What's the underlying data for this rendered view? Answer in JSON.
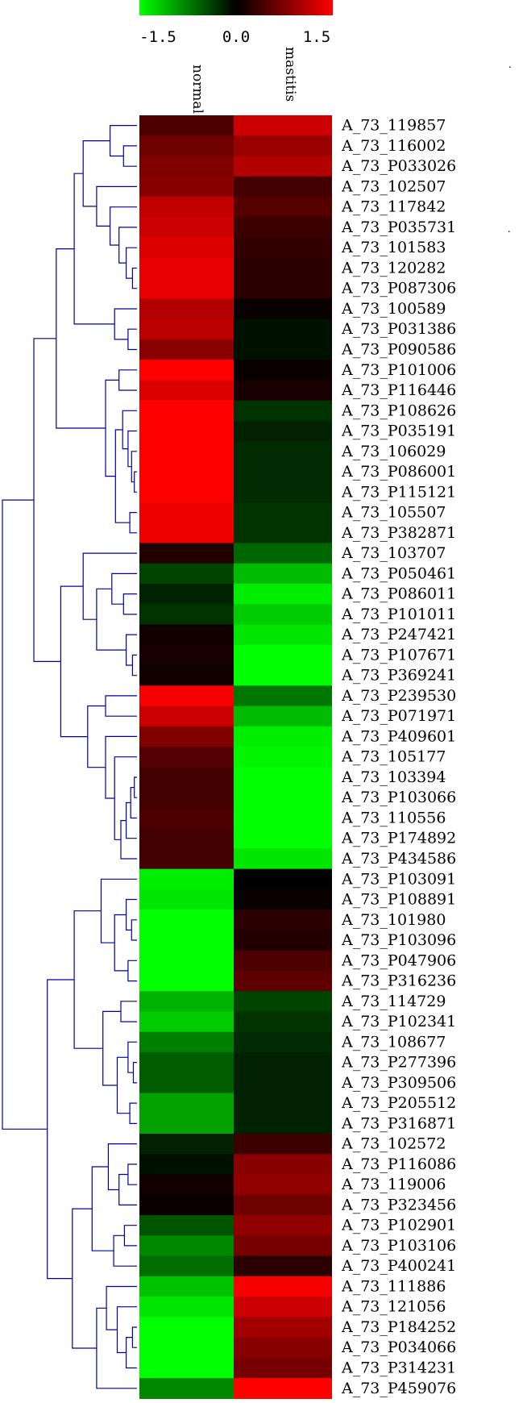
{
  "chart_data": {
    "type": "heatmap",
    "title": "",
    "color_scale": {
      "min": -1.5,
      "max": 1.5,
      "ticks": [
        "-1.5",
        "0.0",
        "1.5"
      ],
      "colors": {
        "low": "#00ff00",
        "mid": "#000000",
        "high": "#ff0000"
      }
    },
    "columns": [
      "normal",
      "mastitis"
    ],
    "rows": [
      "A_73_119857",
      "A_73_116002",
      "A_73_P033026",
      "A_73_102507",
      "A_73_117842",
      "A_73_P035731",
      "A_73_101583",
      "A_73_120282",
      "A_73_P087306",
      "A_73_100589",
      "A_73_P031386",
      "A_73_P090586",
      "A_73_P101006",
      "A_73_P116446",
      "A_73_P108626",
      "A_73_P035191",
      "A_73_106029",
      "A_73_P086001",
      "A_73_P115121",
      "A_73_105507",
      "A_73_P382871",
      "A_73_103707",
      "A_73_P050461",
      "A_73_P086011",
      "A_73_P101011",
      "A_73_P247421",
      "A_73_P107671",
      "A_73_P369241",
      "A_73_P239530",
      "A_73_P071971",
      "A_73_P409601",
      "A_73_105177",
      "A_73_103394",
      "A_73_P103066",
      "A_73_110556",
      "A_73_P174892",
      "A_73_P434586",
      "A_73_P103091",
      "A_73_P108891",
      "A_73_101980",
      "A_73_P103096",
      "A_73_P047906",
      "A_73_P316236",
      "A_73_114729",
      "A_73_P102341",
      "A_73_108677",
      "A_73_P277396",
      "A_73_P309506",
      "A_73_P205512",
      "A_73_P316871",
      "A_73_102572",
      "A_73_P116086",
      "A_73_119006",
      "A_73_P323456",
      "A_73_P102901",
      "A_73_P103106",
      "A_73_P400241",
      "A_73_111886",
      "A_73_121056",
      "A_73_P184252",
      "A_73_P034066",
      "A_73_P314231",
      "A_73_P459076"
    ],
    "values": [
      [
        0.45,
        1.2
      ],
      [
        0.65,
        0.9
      ],
      [
        0.75,
        1.05
      ],
      [
        0.8,
        0.4
      ],
      [
        1.15,
        0.5
      ],
      [
        1.2,
        0.35
      ],
      [
        1.3,
        0.3
      ],
      [
        1.35,
        0.25
      ],
      [
        1.35,
        0.25
      ],
      [
        1.05,
        0.05
      ],
      [
        1.1,
        -0.1
      ],
      [
        0.8,
        -0.1
      ],
      [
        1.5,
        0.05
      ],
      [
        1.3,
        0.15
      ],
      [
        1.5,
        -0.3
      ],
      [
        1.5,
        -0.2
      ],
      [
        1.5,
        -0.25
      ],
      [
        1.5,
        -0.25
      ],
      [
        1.5,
        -0.25
      ],
      [
        1.4,
        -0.3
      ],
      [
        1.4,
        -0.3
      ],
      [
        0.2,
        -0.6
      ],
      [
        -0.4,
        -1.1
      ],
      [
        -0.2,
        -1.4
      ],
      [
        -0.3,
        -1.2
      ],
      [
        0.1,
        -1.35
      ],
      [
        0.15,
        -1.5
      ],
      [
        0.1,
        -1.5
      ],
      [
        1.45,
        -0.7
      ],
      [
        1.2,
        -1.1
      ],
      [
        0.75,
        -1.4
      ],
      [
        0.5,
        -1.45
      ],
      [
        0.4,
        -1.5
      ],
      [
        0.4,
        -1.5
      ],
      [
        0.45,
        -1.5
      ],
      [
        0.4,
        -1.5
      ],
      [
        0.4,
        -1.35
      ],
      [
        -1.4,
        0.0
      ],
      [
        -1.35,
        0.05
      ],
      [
        -1.5,
        0.25
      ],
      [
        -1.5,
        0.2
      ],
      [
        -1.5,
        0.45
      ],
      [
        -1.5,
        0.55
      ],
      [
        -1.05,
        -0.4
      ],
      [
        -1.2,
        -0.3
      ],
      [
        -0.75,
        -0.25
      ],
      [
        -0.55,
        -0.2
      ],
      [
        -0.55,
        -0.2
      ],
      [
        -0.95,
        -0.2
      ],
      [
        -0.95,
        -0.2
      ],
      [
        -0.2,
        0.35
      ],
      [
        -0.1,
        0.8
      ],
      [
        0.1,
        0.85
      ],
      [
        0.05,
        0.65
      ],
      [
        -0.5,
        0.85
      ],
      [
        -0.8,
        0.7
      ],
      [
        -0.65,
        0.25
      ],
      [
        -1.15,
        1.45
      ],
      [
        -1.35,
        1.2
      ],
      [
        -1.5,
        0.95
      ],
      [
        -1.5,
        0.8
      ],
      [
        -1.5,
        0.7
      ],
      [
        -0.8,
        1.5
      ]
    ]
  }
}
